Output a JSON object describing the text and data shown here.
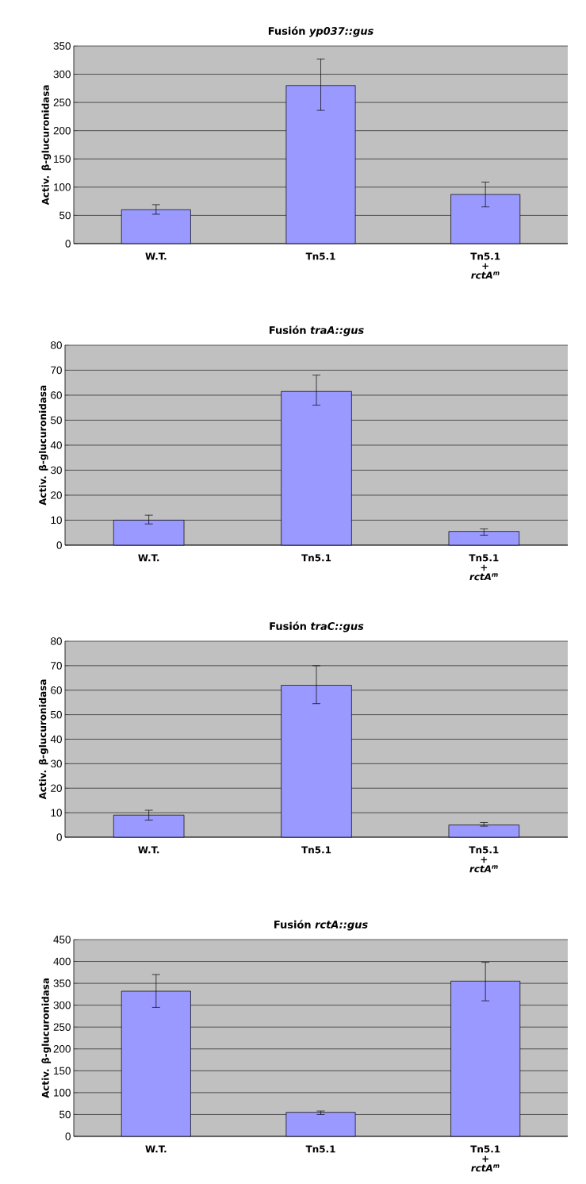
{
  "chart_data": [
    {
      "type": "bar",
      "title": "Fusión *yp037::gus*",
      "ylabel": "Activ. β-glucuronidasa",
      "categories": [
        "W.T.",
        "Tn5.1",
        "Tn5.1 + *rctA$^{m}$*"
      ],
      "values": [
        60,
        280,
        87
      ],
      "errors": [
        [
          52,
          69
        ],
        [
          236,
          327
        ],
        [
          65,
          109
        ]
      ],
      "color": "#9999ff",
      "ylim": [
        0,
        350
      ],
      "yticks": [
        0,
        50,
        100,
        150,
        200,
        250,
        300,
        350
      ],
      "grid": "y"
    },
    {
      "type": "bar",
      "title": "Fusión *traA::gus*",
      "ylabel": "Activ. β-glucuronidasa",
      "categories": [
        "W.T.",
        "Tn5.1",
        "Tn5.1 + *rctA$^{m}$*"
      ],
      "values": [
        10,
        61.5,
        5.5
      ],
      "errors": [
        [
          8.5,
          12
        ],
        [
          56,
          68
        ],
        [
          4,
          6.5
        ]
      ],
      "color": "#9999ff",
      "ylim": [
        0,
        80
      ],
      "yticks": [
        0,
        10,
        20,
        30,
        40,
        50,
        60,
        70,
        80
      ],
      "grid": "y"
    },
    {
      "type": "bar",
      "title": "Fusión *traC::gus*",
      "ylabel": "Activ. β-glucuronidasa",
      "categories": [
        "W.T.",
        "Tn5.1",
        "Tn5.1 + *rctA$^{m}$*"
      ],
      "values": [
        9,
        62,
        5
      ],
      "errors": [
        [
          7,
          11
        ],
        [
          54.5,
          70
        ],
        [
          4.5,
          6
        ]
      ],
      "color": "#9999ff",
      "ylim": [
        0,
        80
      ],
      "yticks": [
        0,
        10,
        20,
        30,
        40,
        50,
        60,
        70,
        80
      ],
      "grid": "y"
    },
    {
      "type": "bar",
      "title": "Fusión *rctA::gus*",
      "ylabel": "Activ. β-glucuronidasa",
      "categories": [
        "W.T.",
        "Tn5.1",
        "Tn5.1 + *rctA$^{m}$*"
      ],
      "values": [
        332,
        55,
        355
      ],
      "errors": [
        [
          295,
          370
        ],
        [
          50,
          58
        ],
        [
          310,
          398
        ]
      ],
      "color": "#9999ff",
      "ylim": [
        0,
        450
      ],
      "yticks": [
        0,
        50,
        100,
        150,
        200,
        250,
        300,
        350,
        400,
        450
      ],
      "grid": "y"
    }
  ]
}
